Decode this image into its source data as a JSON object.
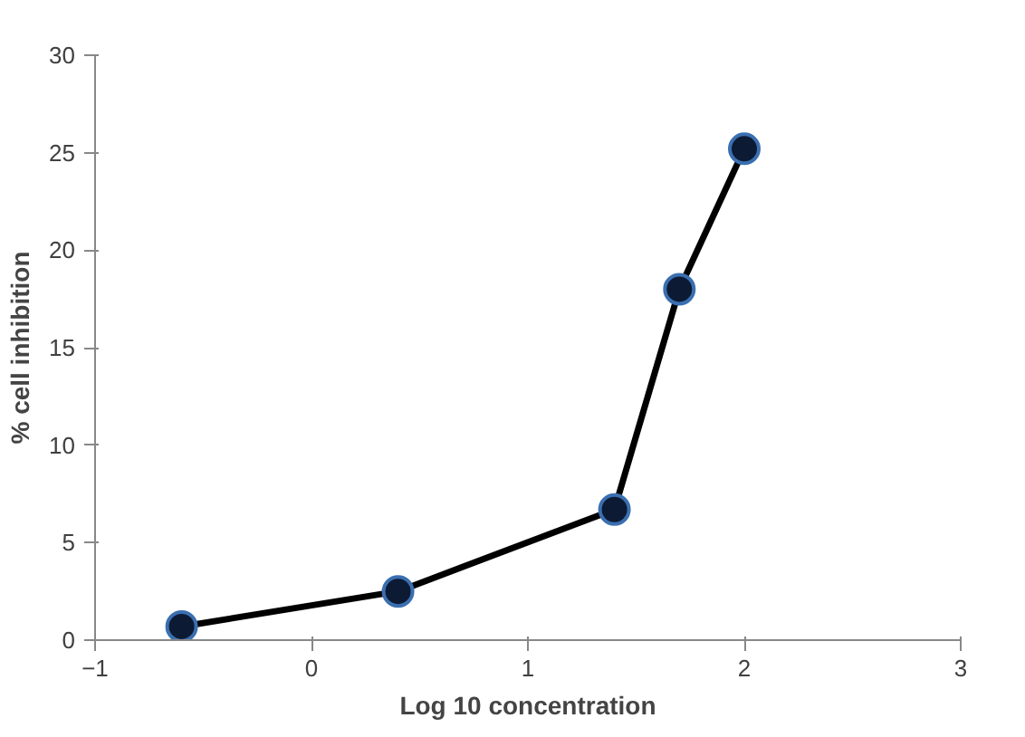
{
  "chart_data": {
    "type": "line",
    "xlabel": "Log 10 concentration",
    "ylabel": "% cell inhibition",
    "x": [
      -0.6,
      0.4,
      1.4,
      1.7,
      2.0
    ],
    "series": [
      {
        "color": "#000000",
        "values": [
          0.7,
          2.5,
          6.7,
          18,
          25.2
        ]
      }
    ],
    "xlim": [
      -1,
      3
    ],
    "xticks": [
      -1,
      0,
      1,
      2,
      3
    ],
    "ylim": [
      0,
      30
    ],
    "yticks": [
      0,
      5,
      10,
      15,
      20,
      25,
      30
    ],
    "grid": false,
    "marker": "circle",
    "line_style": "solid"
  }
}
